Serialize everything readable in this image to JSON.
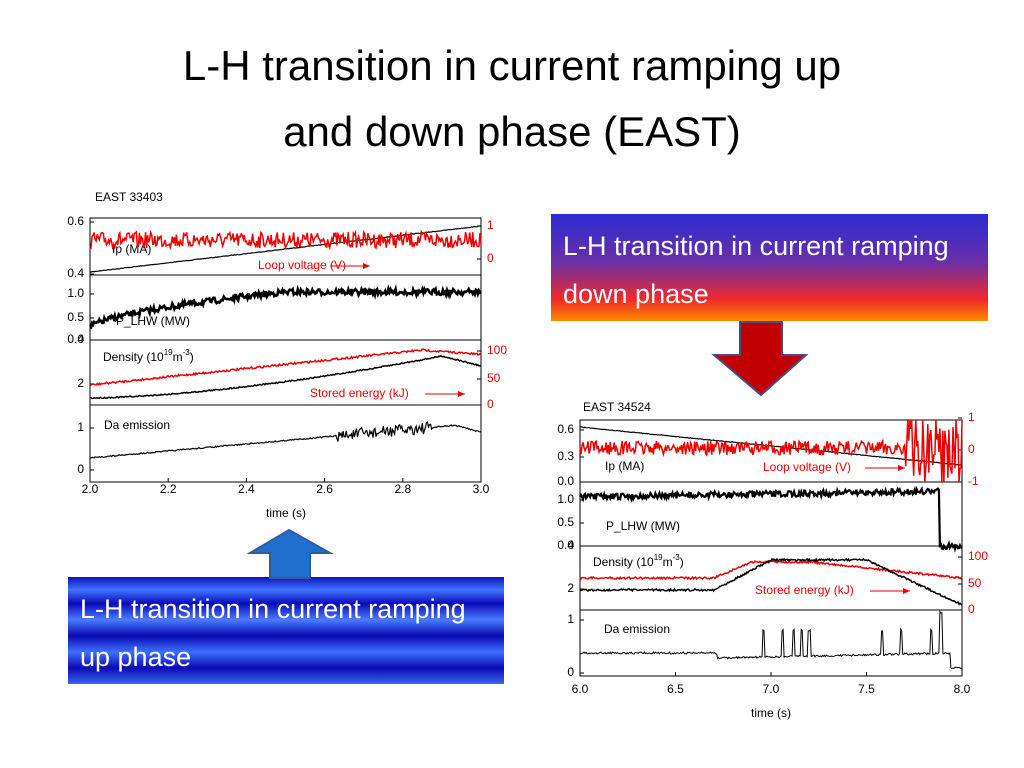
{
  "title": [
    "L-H transition in current ramping up",
    "and down phase (EAST)"
  ],
  "callouts": [
    "L-H transition in current ramping down phase",
    "L-H transition in current ramping up phase"
  ],
  "figures": [
    {
      "shot": "EAST 33403",
      "xlabel": "time (s)",
      "xticks": [
        "2.0",
        "2.2",
        "2.4",
        "2.6",
        "2.8",
        "3.0"
      ],
      "panels": [
        {
          "label": [
            "Ip (MA)"
          ],
          "note": "Loop voltage (V)",
          "yticks": [
            "0.6",
            "0.4"
          ],
          "y2ticks": [
            "1",
            "0"
          ]
        },
        {
          "label": [
            "P_LHW (MW)"
          ],
          "yticks": [
            "1.0",
            "0.5",
            "0.0"
          ]
        },
        {
          "label": [
            "Density (10",
            "19",
            "m",
            "-3",
            ")"
          ],
          "note": "Stored energy (kJ)",
          "yticks": [
            "4",
            "2"
          ],
          "y2ticks": [
            "100",
            "50",
            "0"
          ]
        },
        {
          "label": [
            "Da emission"
          ],
          "yticks": [
            "1",
            "0"
          ]
        }
      ]
    },
    {
      "shot": "EAST 34524",
      "xlabel": "time (s)",
      "xticks": [
        "6.0",
        "6.5",
        "7.0",
        "7.5",
        "8.0"
      ],
      "panels": [
        {
          "label": [
            "Ip (MA)"
          ],
          "note": "Loop voltage (V)",
          "yticks": [
            "0.6",
            "0.3",
            "0.0"
          ],
          "y2ticks": [
            "1",
            "0",
            "-1"
          ]
        },
        {
          "label": [
            "P_LHW (MW)"
          ],
          "yticks": [
            "1.0",
            "0.5",
            "0.0"
          ]
        },
        {
          "label": [
            "Density (10",
            "19",
            "m",
            "-3",
            ")"
          ],
          "note": "Stored energy (kJ)",
          "yticks": [
            "4",
            "2"
          ],
          "y2ticks": [
            "100",
            "50",
            "0"
          ]
        },
        {
          "label": [
            "Da emission"
          ],
          "yticks": [
            "1",
            "0"
          ]
        }
      ]
    }
  ]
}
